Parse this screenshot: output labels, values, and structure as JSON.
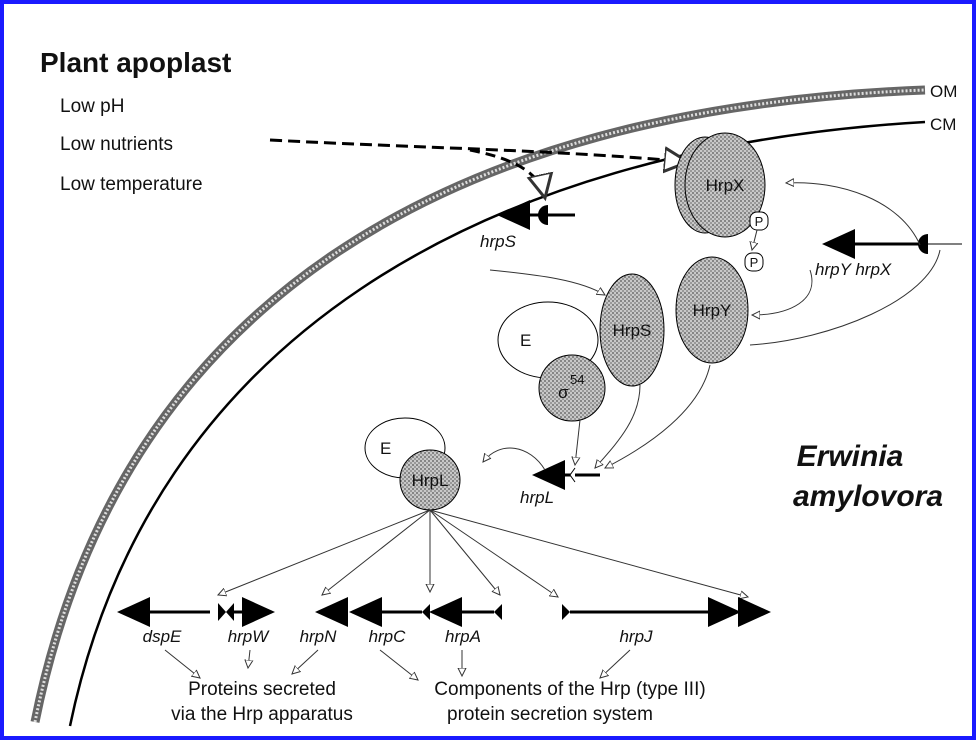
{
  "header": {
    "title": "Plant apoplast"
  },
  "conditions": [
    "Low pH",
    "Low nutrients",
    "Low temperature"
  ],
  "membranes": {
    "outer": "OM",
    "inner": "CM"
  },
  "proteins": {
    "hrpx": "HrpX",
    "hrpy": "HrpY",
    "hrps": "HrpS",
    "e1": "E",
    "sigma": "σ",
    "sigma_sup": "54",
    "e2": "E",
    "hrpl": "HrpL",
    "p1": "P",
    "p2": "P"
  },
  "genes": {
    "hrps": "hrpS",
    "hrpyx": "hrpY hrpX",
    "hrpl": "hrpL",
    "dspe": "dspE",
    "hrpw": "hrpW",
    "hrpn": "hrpN",
    "hrpc": "hrpC",
    "hrpa": "hrpA",
    "hrpj": "hrpJ"
  },
  "organism": [
    "Erwinia",
    "amylovora"
  ],
  "bottom": {
    "left": [
      "Proteins secreted",
      "via the Hrp apparatus"
    ],
    "right": [
      "Components of the Hrp (type III)",
      "protein secretion system"
    ]
  }
}
